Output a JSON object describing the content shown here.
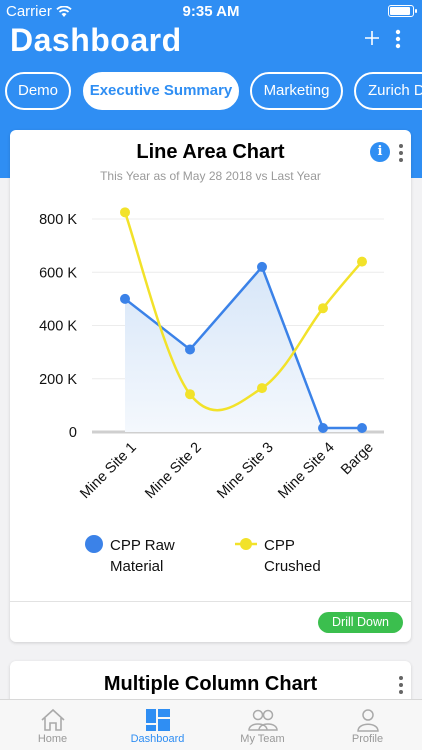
{
  "status_bar": {
    "carrier": "Carrier",
    "time": "9:35 AM"
  },
  "header": {
    "title": "Dashboard"
  },
  "tabs": [
    {
      "label": "Demo",
      "active": false
    },
    {
      "label": "Executive Summary",
      "active": true
    },
    {
      "label": "Marketing",
      "active": false
    },
    {
      "label": "Zurich D",
      "active": false
    }
  ],
  "card1": {
    "title": "Line Area Chart",
    "subtitle": "This Year as of May 28 2018 vs Last Year",
    "drill_label": "Drill Down"
  },
  "card2": {
    "title": "Multiple Column Chart"
  },
  "tabbar": [
    {
      "label": "Home",
      "active": false
    },
    {
      "label": "Dashboard",
      "active": true
    },
    {
      "label": "My Team",
      "active": false
    },
    {
      "label": "Profile",
      "active": false
    }
  ],
  "colors": {
    "brand": "#2f8ef3",
    "series_raw": "#3b82e8",
    "series_crushed": "#f2e22a",
    "drill": "#3bbf4e"
  },
  "chart_data": {
    "type": "line",
    "categories": [
      "Mine Site 1",
      "Mine Site 2",
      "Mine Site 3",
      "Mine Site 4",
      "Barge"
    ],
    "series": [
      {
        "name": "CPP Raw Material",
        "values": [
          500000,
          310000,
          620000,
          15000,
          15000
        ],
        "area": true
      },
      {
        "name": "CPP Crushed",
        "values": [
          825000,
          142000,
          165000,
          465000,
          640000
        ],
        "area": false
      }
    ],
    "y_ticks": [
      "0",
      "200 K",
      "400 K",
      "600 K",
      "800 K"
    ],
    "ylim": [
      0,
      800000
    ],
    "legend": [
      {
        "line1": "CPP Raw",
        "line2": "Material"
      },
      {
        "line1": "CPP",
        "line2": "Crushed"
      }
    ],
    "grid": true,
    "legend_position": "bottom"
  }
}
